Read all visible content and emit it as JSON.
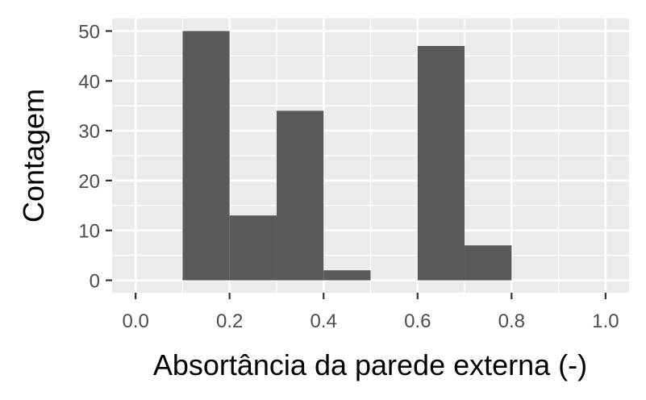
{
  "chart_data": {
    "type": "bar",
    "xlabel": "Absortância da parede externa (-)",
    "ylabel": "Contagem",
    "xlim": [
      -0.05,
      1.05
    ],
    "ylim": [
      -2.5,
      52.5
    ],
    "bins": [
      {
        "x0": 0.1,
        "x1": 0.2,
        "count": 50
      },
      {
        "x0": 0.2,
        "x1": 0.3,
        "count": 13
      },
      {
        "x0": 0.3,
        "x1": 0.4,
        "count": 34
      },
      {
        "x0": 0.4,
        "x1": 0.5,
        "count": 2
      },
      {
        "x0": 0.5,
        "x1": 0.6,
        "count": 0
      },
      {
        "x0": 0.6,
        "x1": 0.7,
        "count": 47
      },
      {
        "x0": 0.7,
        "x1": 0.8,
        "count": 7
      }
    ],
    "x_ticks": [
      "0.0",
      "0.2",
      "0.4",
      "0.6",
      "0.8",
      "1.0"
    ],
    "y_ticks": [
      "0",
      "10",
      "20",
      "30",
      "40",
      "50"
    ],
    "x_tick_values": [
      0.0,
      0.2,
      0.4,
      0.6,
      0.8,
      1.0
    ],
    "y_tick_values": [
      0,
      10,
      20,
      30,
      40,
      50
    ],
    "grid": true,
    "colors": {
      "panel": "#ebebeb",
      "grid": "#ffffff",
      "bar": "#595959",
      "tick_text": "#4d4d4d",
      "tick": "#333333"
    }
  }
}
